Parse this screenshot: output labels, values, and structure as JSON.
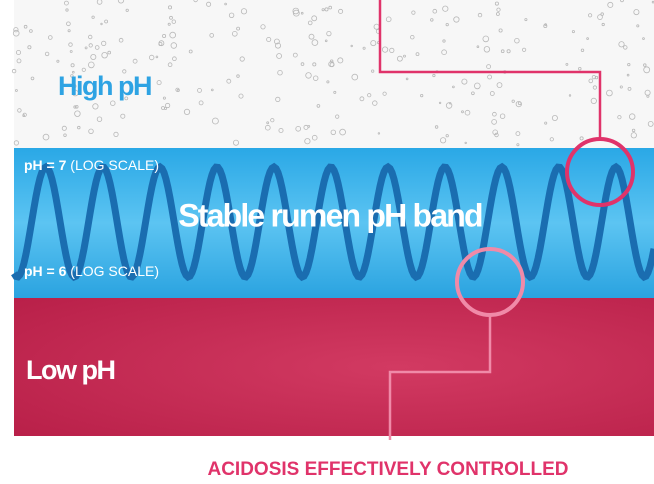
{
  "regions": {
    "high": "High pH",
    "band": "Stable rumen pH band",
    "low": "Low pH"
  },
  "markers": [
    {
      "label": "pH = 7",
      "note": "(LOG SCALE)"
    },
    {
      "label": "pH = 6",
      "note": "(LOG SCALE)"
    }
  ],
  "callout": "ACIDOSIS EFFECTIVELY CONTROLLED"
}
